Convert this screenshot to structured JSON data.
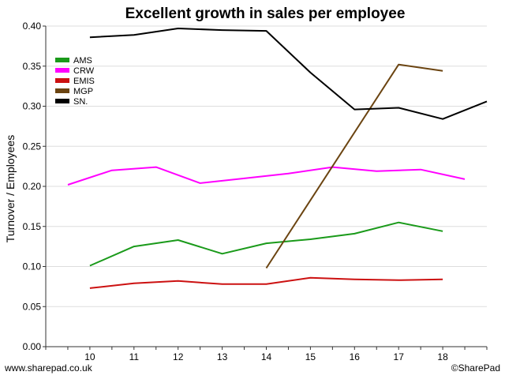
{
  "chart_data": {
    "type": "line",
    "title": "Excellent growth in sales per employee",
    "xlabel": "",
    "ylabel": "Turnover / Employees",
    "xlim": [
      9,
      19
    ],
    "ylim": [
      0,
      0.4
    ],
    "x_ticks": [
      10,
      11,
      12,
      13,
      14,
      15,
      16,
      17,
      18
    ],
    "y_ticks": [
      0.0,
      0.05,
      0.1,
      0.15,
      0.2,
      0.25,
      0.3,
      0.35,
      0.4
    ],
    "y_tick_labels": [
      "0.00",
      "0.05",
      "0.10",
      "0.15",
      "0.20",
      "0.25",
      "0.30",
      "0.35",
      "0.40"
    ],
    "grid": "horizontal",
    "legend_position": "top-left",
    "series": [
      {
        "name": "AMS",
        "color": "#1a9a1a",
        "x": [
          10,
          11,
          12,
          13,
          14,
          15,
          16,
          17,
          18
        ],
        "values": [
          0.101,
          0.125,
          0.133,
          0.116,
          0.129,
          0.134,
          0.141,
          0.155,
          0.144
        ]
      },
      {
        "name": "CRW",
        "color": "#ff00ff",
        "x": [
          9.5,
          10.5,
          11.5,
          12.5,
          13.5,
          14.5,
          15.5,
          16.5,
          17.5,
          18.5
        ],
        "values": [
          0.202,
          0.22,
          0.224,
          0.204,
          0.21,
          0.216,
          0.224,
          0.219,
          0.221,
          0.209
        ]
      },
      {
        "name": "EMIS",
        "color": "#cc1111",
        "x": [
          10,
          11,
          12,
          13,
          14,
          15,
          16,
          17,
          18
        ],
        "values": [
          0.073,
          0.079,
          0.082,
          0.078,
          0.078,
          0.086,
          0.084,
          0.083,
          0.084
        ]
      },
      {
        "name": "MGP",
        "color": "#6b4411",
        "x": [
          14,
          17,
          18
        ],
        "values": [
          0.098,
          0.352,
          0.344
        ]
      },
      {
        "name": "SN.",
        "color": "#000000",
        "x": [
          10,
          11,
          12,
          13,
          14,
          15,
          16,
          17,
          18,
          19
        ],
        "values": [
          0.386,
          0.389,
          0.397,
          0.395,
          0.394,
          0.342,
          0.296,
          0.298,
          0.284,
          0.306
        ]
      }
    ],
    "footer_left": "www.sharepad.co.uk",
    "footer_right": "©SharePad"
  }
}
